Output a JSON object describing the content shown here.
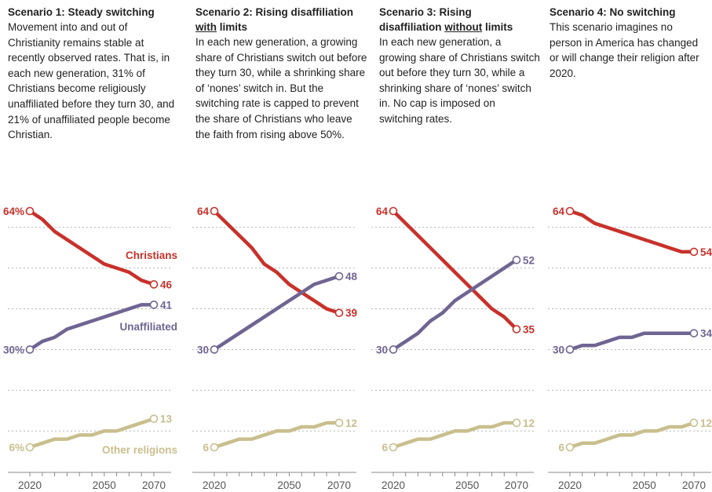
{
  "panels": [
    {
      "title_pre": "Scenario 1: Steady switching",
      "title_u": "",
      "title_post": "",
      "description": "Movement into and out of Christianity remains stable at recently observed rates. That is, in each new generation, 31% of Christians become religiously unaffiliated before they turn 30, and 21% of unaffiliated people become Christian."
    },
    {
      "title_pre": "Scenario 2: Rising disaffiliation ",
      "title_u": "with",
      "title_post": " limits",
      "description": "In each new generation, a growing share of Christians switch out before they turn 30, while a shrinking share of ‘nones’ switch in. But the switching rate is capped to prevent the share of Christians who leave the faith from rising above 50%."
    },
    {
      "title_pre": "Scenario 3: Rising disaffiliation ",
      "title_u": "without",
      "title_post": " limits",
      "description": "In each new generation, a growing share of Christians switch out before they turn 30, while a shrinking share of ‘nones’ switch in. No cap is imposed on switching rates."
    },
    {
      "title_pre": "Scenario 4: No switching",
      "title_u": "",
      "title_post": "",
      "description": "This scenario imagines no person in America has changed or will change their religion after 2020."
    }
  ],
  "colors": {
    "christians": "#c8312a",
    "unaffiliated": "#6f6592",
    "other": "#c9bf8e"
  },
  "chart_data": [
    {
      "type": "line",
      "x": [
        2020,
        2025,
        2030,
        2035,
        2040,
        2045,
        2050,
        2055,
        2060,
        2065,
        2070
      ],
      "xticks": [
        "2020",
        "2050",
        "2070"
      ],
      "ylim": [
        0,
        70
      ],
      "series": [
        {
          "name": "Christians",
          "key": "christians",
          "values": [
            64,
            62,
            59,
            57,
            55,
            53,
            51,
            50,
            49,
            47,
            46
          ],
          "start_label": "64%",
          "end_label": "46"
        },
        {
          "name": "Unaffiliated",
          "key": "unaffiliated",
          "values": [
            30,
            32,
            33,
            35,
            36,
            37,
            38,
            39,
            40,
            41,
            41
          ],
          "start_label": "30%",
          "end_label": "41"
        },
        {
          "name": "Other religions",
          "key": "other",
          "values": [
            6,
            7,
            8,
            8,
            9,
            9,
            10,
            10,
            11,
            12,
            13
          ],
          "start_label": "6%",
          "end_label": "13"
        }
      ]
    },
    {
      "type": "line",
      "x": [
        2020,
        2025,
        2030,
        2035,
        2040,
        2045,
        2050,
        2055,
        2060,
        2065,
        2070
      ],
      "xticks": [
        "2020",
        "2050",
        "2070"
      ],
      "ylim": [
        0,
        70
      ],
      "series": [
        {
          "name": "",
          "key": "christians",
          "values": [
            64,
            61,
            58,
            55,
            51,
            49,
            46,
            44,
            42,
            40,
            39
          ],
          "start_label": "64",
          "end_label": "39"
        },
        {
          "name": "",
          "key": "unaffiliated",
          "values": [
            30,
            32,
            34,
            36,
            38,
            40,
            42,
            44,
            46,
            47,
            48
          ],
          "start_label": "30",
          "end_label": "48"
        },
        {
          "name": "",
          "key": "other",
          "values": [
            6,
            7,
            8,
            8,
            9,
            10,
            10,
            11,
            11,
            12,
            12
          ],
          "start_label": "6",
          "end_label": "12"
        }
      ]
    },
    {
      "type": "line",
      "x": [
        2020,
        2025,
        2030,
        2035,
        2040,
        2045,
        2050,
        2055,
        2060,
        2065,
        2070
      ],
      "xticks": [
        "2020",
        "2050",
        "2070"
      ],
      "ylim": [
        0,
        70
      ],
      "series": [
        {
          "name": "",
          "key": "christians",
          "values": [
            64,
            61,
            58,
            55,
            52,
            49,
            46,
            43,
            40,
            38,
            35
          ],
          "start_label": "64",
          "end_label": "35"
        },
        {
          "name": "",
          "key": "unaffiliated",
          "values": [
            30,
            32,
            34,
            37,
            39,
            42,
            44,
            46,
            48,
            50,
            52
          ],
          "start_label": "30",
          "end_label": "52"
        },
        {
          "name": "",
          "key": "other",
          "values": [
            6,
            7,
            8,
            8,
            9,
            10,
            10,
            11,
            11,
            12,
            12
          ],
          "start_label": "6",
          "end_label": "12"
        }
      ]
    },
    {
      "type": "line",
      "x": [
        2020,
        2025,
        2030,
        2035,
        2040,
        2045,
        2050,
        2055,
        2060,
        2065,
        2070
      ],
      "xticks": [
        "2020",
        "2050",
        "2070"
      ],
      "ylim": [
        0,
        70
      ],
      "series": [
        {
          "name": "",
          "key": "christians",
          "values": [
            64,
            63,
            61,
            60,
            59,
            58,
            57,
            56,
            55,
            54,
            54
          ],
          "start_label": "64",
          "end_label": "54"
        },
        {
          "name": "",
          "key": "unaffiliated",
          "values": [
            30,
            31,
            31,
            32,
            33,
            33,
            34,
            34,
            34,
            34,
            34
          ],
          "start_label": "30",
          "end_label": "34"
        },
        {
          "name": "",
          "key": "other",
          "values": [
            6,
            7,
            7,
            8,
            9,
            9,
            10,
            10,
            11,
            11,
            12
          ],
          "start_label": "6",
          "end_label": "12"
        }
      ]
    }
  ]
}
